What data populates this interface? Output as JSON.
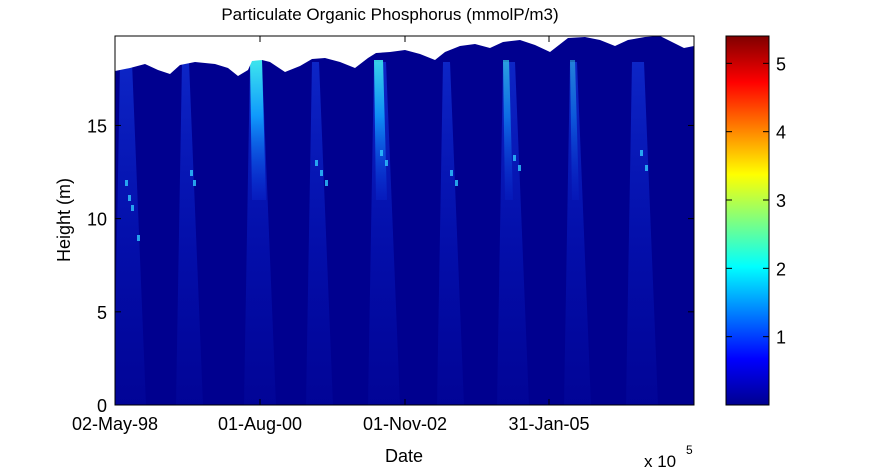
{
  "chart_data": {
    "type": "heatmap",
    "title": "Particulate Organic Phosphorus (mmolP/m3)",
    "xlabel": "Date",
    "ylabel": "Height (m)",
    "x_exponent_label": "x 10",
    "x_exponent_power": "5",
    "x_tick_labels": [
      "02-May-98",
      "01-Aug-00",
      "01-Nov-02",
      "31-Jan-05"
    ],
    "y_ticks": [
      0,
      5,
      10,
      15
    ],
    "ylim": [
      0,
      19.8
    ],
    "colorbar": {
      "colormap": "jet",
      "range": [
        0,
        5.4
      ],
      "ticks": [
        1,
        2,
        3,
        4,
        5
      ]
    },
    "background_value_approx": 0.3,
    "surface_height_profile": [
      {
        "date": "02-May-98",
        "height": 18.0
      },
      {
        "date": "01-Aug-00",
        "height": 18.5
      },
      {
        "date": "01-Nov-02",
        "height": 18.9
      },
      {
        "date": "31-Jan-05",
        "height": 19.7
      }
    ],
    "colors": {
      "background": "#00008f",
      "plume": "#0a1fd0",
      "peak": "#3ff0f0"
    }
  }
}
